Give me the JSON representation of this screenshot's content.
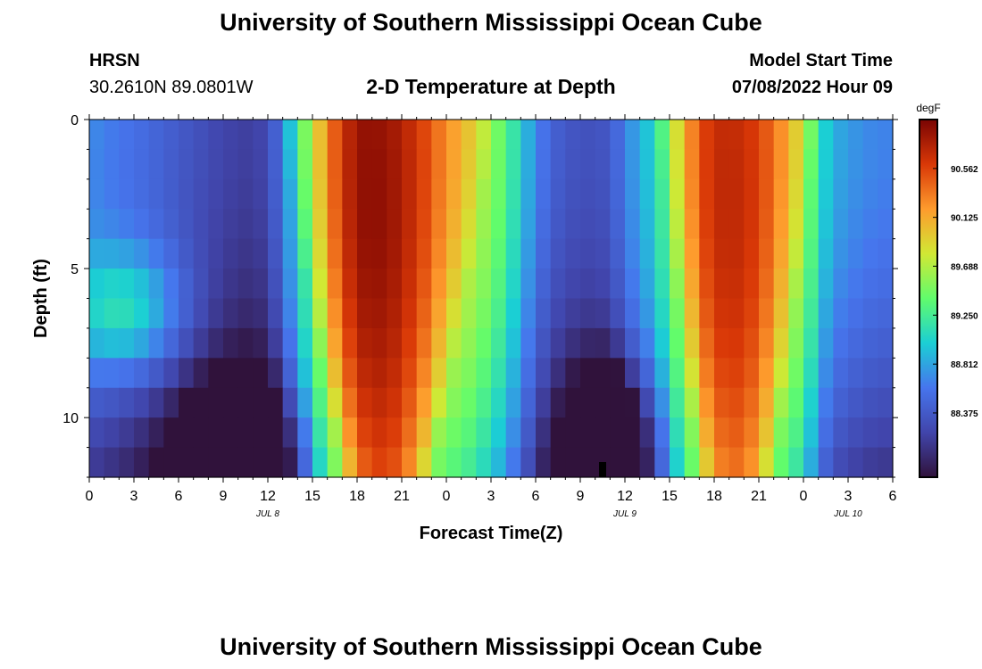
{
  "header": {
    "title": "University of Southern Mississippi Ocean Cube",
    "station_name": "HRSN",
    "station_coords": "30.2610N  89.0801W",
    "chart_title": "2-D Temperature at Depth",
    "model_label": "Model Start Time",
    "model_time": "07/08/2022 Hour 09"
  },
  "footer": {
    "title": "University of Southern Mississippi Ocean Cube"
  },
  "colors": {
    "background": "#ffffff",
    "text": "#000000"
  },
  "chart_data": {
    "type": "heatmap",
    "title": "2-D Temperature at Depth",
    "xlabel": "Forecast Time(Z)",
    "ylabel": "Depth (ft)",
    "x_range_hours": [
      0,
      54
    ],
    "y_range_ft": [
      0,
      12
    ],
    "x_ticks": [
      {
        "h": 0,
        "label": "0"
      },
      {
        "h": 3,
        "label": "3"
      },
      {
        "h": 6,
        "label": "6"
      },
      {
        "h": 9,
        "label": "9"
      },
      {
        "h": 12,
        "label": "12"
      },
      {
        "h": 15,
        "label": "15"
      },
      {
        "h": 18,
        "label": "18"
      },
      {
        "h": 21,
        "label": "21"
      },
      {
        "h": 24,
        "label": "0"
      },
      {
        "h": 27,
        "label": "3"
      },
      {
        "h": 30,
        "label": "6"
      },
      {
        "h": 33,
        "label": "9"
      },
      {
        "h": 36,
        "label": "12"
      },
      {
        "h": 39,
        "label": "15"
      },
      {
        "h": 42,
        "label": "18"
      },
      {
        "h": 45,
        "label": "21"
      },
      {
        "h": 48,
        "label": "0"
      },
      {
        "h": 51,
        "label": "3"
      },
      {
        "h": 54,
        "label": "6"
      }
    ],
    "date_labels": [
      {
        "h": 12,
        "label": "JUL 8"
      },
      {
        "h": 36,
        "label": "JUL 9"
      },
      {
        "h": 51,
        "label": "JUL 10"
      }
    ],
    "y_ticks": [
      {
        "ft": 0,
        "label": "0"
      },
      {
        "ft": 5,
        "label": "5"
      },
      {
        "ft": 10,
        "label": "10"
      }
    ],
    "depth_levels_ft": [
      0.5,
      1.5,
      2.5,
      3.5,
      4.5,
      5.5,
      6.5,
      7.5,
      8.5,
      9.5,
      10.5,
      11.5
    ],
    "time_step_hours": 1,
    "surface_profile": {
      "hours": [
        0,
        4,
        9,
        11,
        12,
        13,
        14,
        15,
        16,
        18,
        20,
        22,
        24,
        26,
        28,
        29,
        30,
        31,
        33,
        35,
        36,
        38,
        39,
        40,
        41,
        42,
        44,
        46,
        48,
        49,
        50,
        52,
        54
      ],
      "temps_degF": [
        88.95,
        88.75,
        88.45,
        88.4,
        88.5,
        88.85,
        89.35,
        89.75,
        90.25,
        90.75,
        90.72,
        90.5,
        90.2,
        90.0,
        89.6,
        89.25,
        88.95,
        88.7,
        88.55,
        88.6,
        88.9,
        89.3,
        89.7,
        90.1,
        90.4,
        90.55,
        90.52,
        90.3,
        89.9,
        89.4,
        89.1,
        88.95,
        88.9
      ]
    },
    "warm_pulses": [
      {
        "center_h": 20.0,
        "base_halfwidth_h": 3.0,
        "surface_halfwidth_h": 7.5,
        "amplitude_degF": 1.9
      },
      {
        "center_h": 43.5,
        "base_halfwidth_h": 2.5,
        "surface_halfwidth_h": 5.5,
        "amplitude_degF": 1.9
      }
    ],
    "cold_bottom_features": [
      {
        "center_h": 10.0,
        "width_h": 8.0,
        "amplitude_degF": -0.9,
        "depth_ft": 11.5
      },
      {
        "center_h": 35.0,
        "width_h": 5.5,
        "amplitude_degF": -1.1,
        "depth_ft": 11.0
      }
    ],
    "morning_warm_layer": {
      "center_h": 2.5,
      "width_h": 4.0,
      "depth_ft": 6.5,
      "amplitude_degF": 0.7
    },
    "current_time_marker_h": 34.5,
    "colorbar": {
      "unit": "degF",
      "min": 87.8,
      "max": 91.0,
      "tick_values": [
        88.375,
        88.812,
        89.25,
        89.688,
        90.125,
        90.562
      ],
      "tick_labels": [
        "88.375",
        "88.812",
        "89.250",
        "89.688",
        "90.125",
        "90.562"
      ]
    }
  }
}
